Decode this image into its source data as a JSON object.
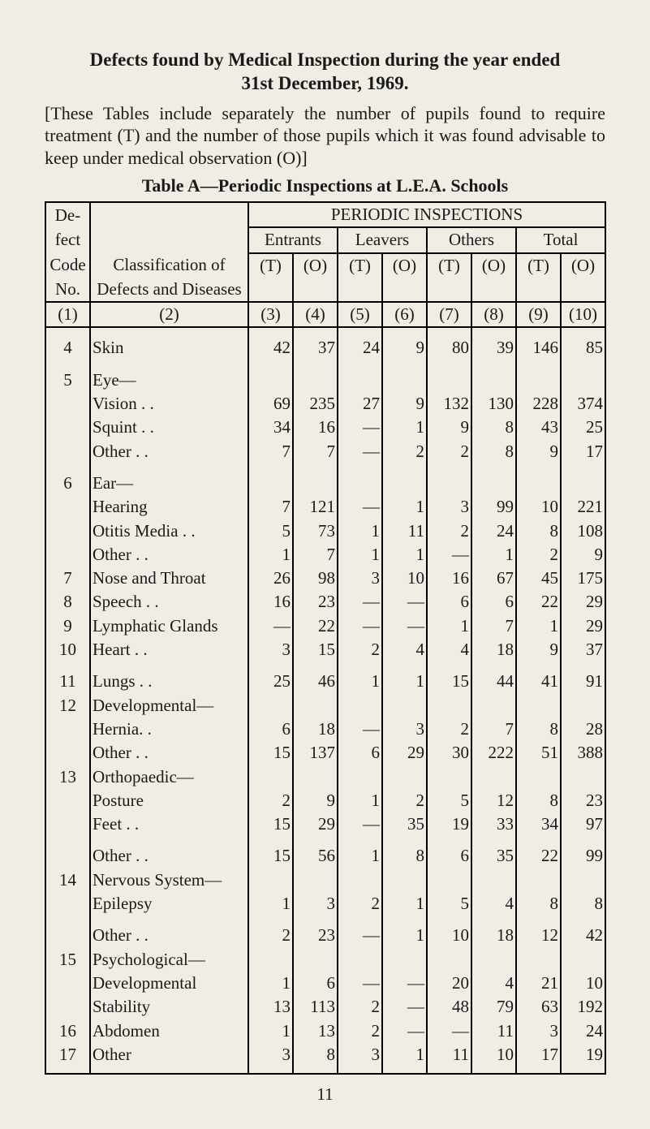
{
  "title_line1": "Defects found by Medical Inspection during the year ended",
  "title_line2": "31st December, 1969.",
  "intro": "[These Tables include separately the number of pupils found to require treatment (T) and the number of those pupils which it was found advisable to keep under medical observation (O)]",
  "table_title": "Table A—Periodic Inspections at L.E.A. Schools",
  "head": {
    "defect_code_1": "De-",
    "defect_code_2": "fect",
    "defect_code_3": "Code",
    "defect_code_4": "No.",
    "classification_1": "Classification of",
    "classification_2": "Defects and Diseases",
    "periodic": "PERIODIC INSPECTIONS",
    "entrants": "Entrants",
    "leavers": "Leavers",
    "others": "Others",
    "total": "Total",
    "T": "(T)",
    "O": "(O)",
    "col1": "(1)",
    "col2": "(2)",
    "col3": "(3)",
    "col4": "(4)",
    "col5": "(5)",
    "col6": "(6)",
    "col7": "(7)",
    "col8": "(8)",
    "col9": "(9)",
    "col10": "(10)"
  },
  "rows": [
    {
      "code": "4",
      "label": "Skin",
      "dots": ". .        . .",
      "v": [
        "42",
        "37",
        "24",
        "9",
        "80",
        "39",
        "146",
        "85"
      ]
    },
    {
      "code": "5",
      "label": "Eye—",
      "v": null
    },
    {
      "code": "",
      "label": "Vision . .",
      "indent": 1,
      "v": [
        "69",
        "235",
        "27",
        "9",
        "132",
        "130",
        "228",
        "374"
      ]
    },
    {
      "code": "",
      "label": "Squint . .",
      "indent": 1,
      "v": [
        "34",
        "16",
        "—",
        "1",
        "9",
        "8",
        "43",
        "25"
      ]
    },
    {
      "code": "",
      "label": "Other . .",
      "indent": 1,
      "v": [
        "7",
        "7",
        "—",
        "2",
        "2",
        "8",
        "9",
        "17"
      ]
    },
    {
      "code": "6",
      "label": "Ear—",
      "v": null
    },
    {
      "code": "",
      "label": "Hearing",
      "indent": 1,
      "v": [
        "7",
        "121",
        "—",
        "1",
        "3",
        "99",
        "10",
        "221"
      ]
    },
    {
      "code": "",
      "label": "Otitis Media . .",
      "indent": 1,
      "v": [
        "5",
        "73",
        "1",
        "11",
        "2",
        "24",
        "8",
        "108"
      ]
    },
    {
      "code": "",
      "label": "Other . .",
      "indent": 1,
      "v": [
        "1",
        "7",
        "1",
        "1",
        "—",
        "1",
        "2",
        "9"
      ]
    },
    {
      "code": "7",
      "label": "Nose and Throat",
      "v": [
        "26",
        "98",
        "3",
        "10",
        "16",
        "67",
        "45",
        "175"
      ]
    },
    {
      "code": "8",
      "label": "Speech   . .",
      "v": [
        "16",
        "23",
        "—",
        "—",
        "6",
        "6",
        "22",
        "29"
      ]
    },
    {
      "code": "9",
      "label": "Lymphatic Glands",
      "v": [
        "—",
        "22",
        "—",
        "—",
        "1",
        "7",
        "1",
        "29"
      ]
    },
    {
      "code": "10",
      "label": "Heart      . .",
      "v": [
        "3",
        "15",
        "2",
        "4",
        "4",
        "18",
        "9",
        "37"
      ]
    },
    {
      "code": "11",
      "label": "Lungs     . .",
      "v": [
        "25",
        "46",
        "1",
        "1",
        "15",
        "44",
        "41",
        "91"
      ]
    },
    {
      "code": "12",
      "label": "Developmental—",
      "v": null
    },
    {
      "code": "",
      "label": "Hernia. .",
      "indent": 1,
      "v": [
        "6",
        "18",
        "—",
        "3",
        "2",
        "7",
        "8",
        "28"
      ]
    },
    {
      "code": "",
      "label": "Other . .",
      "indent": 1,
      "v": [
        "15",
        "137",
        "6",
        "29",
        "30",
        "222",
        "51",
        "388"
      ]
    },
    {
      "code": "13",
      "label": "Orthopaedic—",
      "v": null
    },
    {
      "code": "",
      "label": "Posture",
      "indent": 1,
      "v": [
        "2",
        "9",
        "1",
        "2",
        "5",
        "12",
        "8",
        "23"
      ]
    },
    {
      "code": "",
      "label": "Feet     . .",
      "indent": 1,
      "v": [
        "15",
        "29",
        "—",
        "35",
        "19",
        "33",
        "34",
        "97"
      ]
    },
    {
      "code": "",
      "label": "Other . .",
      "indent": 1,
      "v": [
        "15",
        "56",
        "1",
        "8",
        "6",
        "35",
        "22",
        "99"
      ]
    },
    {
      "code": "14",
      "label": "Nervous System—",
      "v": null
    },
    {
      "code": "",
      "label": "Epilepsy",
      "indent": 1,
      "v": [
        "1",
        "3",
        "2",
        "1",
        "5",
        "4",
        "8",
        "8"
      ]
    },
    {
      "code": "",
      "label": "Other . .",
      "indent": 1,
      "v": [
        "2",
        "23",
        "—",
        "1",
        "10",
        "18",
        "12",
        "42"
      ]
    },
    {
      "code": "15",
      "label": "Psychological—",
      "v": null
    },
    {
      "code": "",
      "label": "Developmental",
      "indent": 1,
      "v": [
        "1",
        "6",
        "—",
        "—",
        "20",
        "4",
        "21",
        "10"
      ]
    },
    {
      "code": "",
      "label": "Stability",
      "indent": 1,
      "v": [
        "13",
        "113",
        "2",
        "—",
        "48",
        "79",
        "63",
        "192"
      ]
    },
    {
      "code": "16",
      "label": "Abdomen",
      "v": [
        "1",
        "13",
        "2",
        "—",
        "—",
        "11",
        "3",
        "24"
      ]
    },
    {
      "code": "17",
      "label": "Other",
      "v": [
        "3",
        "8",
        "3",
        "1",
        "11",
        "10",
        "17",
        "19"
      ]
    }
  ],
  "page_number": "11",
  "group_breaks_after": [
    0,
    4,
    12,
    19,
    22
  ]
}
